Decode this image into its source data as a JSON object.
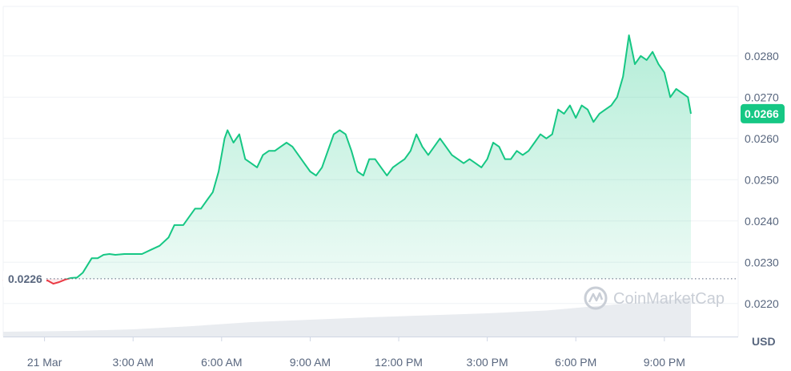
{
  "chart_data": {
    "type": "line",
    "title": "",
    "xlabel": "",
    "ylabel": "",
    "unit_label": "USD",
    "watermark": "CoinMarketCap",
    "reference_price": 0.0226,
    "reference_label": "0.0226",
    "current_price": 0.0266,
    "current_label": "0.0266",
    "ylim": [
      0.0212,
      0.0292
    ],
    "xlim": [
      -1.4,
      23.5
    ],
    "grid": true,
    "y_ticks": [
      {
        "value": 0.028,
        "label": "0.0280"
      },
      {
        "value": 0.027,
        "label": "0.0270"
      },
      {
        "value": 0.026,
        "label": "0.0260"
      },
      {
        "value": 0.025,
        "label": "0.0250"
      },
      {
        "value": 0.024,
        "label": "0.0240"
      },
      {
        "value": 0.023,
        "label": "0.0230"
      },
      {
        "value": 0.022,
        "label": "0.0220"
      }
    ],
    "x_ticks": [
      {
        "value": 0,
        "label": "21 Mar"
      },
      {
        "value": 3,
        "label": "3:00 AM"
      },
      {
        "value": 6,
        "label": "6:00 AM"
      },
      {
        "value": 9,
        "label": "9:00 AM"
      },
      {
        "value": 12,
        "label": "12:00 PM"
      },
      {
        "value": 15,
        "label": "3:00 PM"
      },
      {
        "value": 18,
        "label": "6:00 PM"
      },
      {
        "value": 21,
        "label": "9:00 PM"
      }
    ],
    "series": [
      {
        "x": [
          -1.4,
          -1.1,
          -0.8,
          -0.5,
          -0.3,
          -0.1,
          0.1,
          0.3,
          0.5,
          0.7,
          0.9,
          1.1,
          1.3,
          1.6,
          1.8,
          2.0,
          2.2,
          2.4,
          2.7,
          3.0,
          3.3,
          3.6,
          3.9,
          4.2,
          4.4,
          4.7,
          4.9,
          5.1,
          5.3,
          5.5,
          5.7,
          5.9,
          6.1,
          6.2,
          6.4,
          6.6,
          6.8,
          7.0,
          7.2,
          7.4,
          7.6,
          7.8,
          8.0,
          8.2,
          8.4,
          8.6,
          8.8,
          9.0,
          9.2,
          9.4,
          9.6,
          9.8,
          10.0,
          10.2,
          10.4,
          10.6,
          10.8,
          11.0,
          11.2,
          11.4,
          11.6,
          11.8,
          12.0,
          12.2,
          12.4,
          12.6,
          12.8,
          13.0,
          13.2,
          13.4,
          13.6,
          13.8,
          14.0,
          14.2,
          14.4,
          14.6,
          14.8,
          15.0,
          15.2,
          15.4,
          15.6,
          15.8,
          16.0,
          16.2,
          16.4,
          16.6,
          16.8,
          17.0,
          17.2,
          17.4,
          17.6,
          17.8,
          18.0,
          18.2,
          18.4,
          18.6,
          18.8,
          19.0,
          19.2,
          19.4,
          19.6,
          19.8,
          20.0,
          20.2,
          20.4,
          20.6,
          20.8,
          21.0,
          21.2,
          21.4,
          21.6,
          21.8,
          21.9
        ],
        "values": [
          0.02255,
          0.0226,
          0.02258,
          0.02262,
          0.02258,
          0.02253,
          0.02256,
          0.02248,
          0.02252,
          0.02258,
          0.02262,
          0.02263,
          0.02275,
          0.0231,
          0.0231,
          0.02318,
          0.0232,
          0.02318,
          0.0232,
          0.0232,
          0.0232,
          0.0233,
          0.0234,
          0.0236,
          0.0239,
          0.0239,
          0.0241,
          0.0243,
          0.0243,
          0.0245,
          0.0247,
          0.0252,
          0.026,
          0.0262,
          0.0259,
          0.0261,
          0.0255,
          0.0254,
          0.0253,
          0.0256,
          0.0257,
          0.0257,
          0.0258,
          0.0259,
          0.0258,
          0.0256,
          0.0254,
          0.0252,
          0.0251,
          0.0253,
          0.0257,
          0.0261,
          0.0262,
          0.0261,
          0.0257,
          0.0252,
          0.0251,
          0.0255,
          0.0255,
          0.0253,
          0.0251,
          0.0253,
          0.0254,
          0.0255,
          0.0257,
          0.0261,
          0.0258,
          0.0256,
          0.0258,
          0.026,
          0.0258,
          0.0256,
          0.0255,
          0.0254,
          0.0255,
          0.0254,
          0.0253,
          0.0255,
          0.0259,
          0.0258,
          0.0255,
          0.0255,
          0.0257,
          0.0256,
          0.0257,
          0.0259,
          0.0261,
          0.026,
          0.0261,
          0.0267,
          0.0266,
          0.0268,
          0.0265,
          0.0268,
          0.0267,
          0.0264,
          0.0266,
          0.0267,
          0.0268,
          0.027,
          0.0275,
          0.0285,
          0.0278,
          0.028,
          0.0279,
          0.0281,
          0.0278,
          0.0276,
          0.027,
          0.0272,
          0.0271,
          0.027,
          0.0266
        ]
      }
    ],
    "volume": {
      "x": [
        -1.4,
        1.0,
        3.0,
        5.0,
        7.0,
        9.0,
        11.0,
        13.0,
        15.0,
        17.0,
        19.0,
        21.0,
        21.9
      ],
      "values": [
        0.12,
        0.14,
        0.18,
        0.26,
        0.36,
        0.42,
        0.48,
        0.53,
        0.58,
        0.65,
        0.78,
        0.9,
        0.96
      ]
    },
    "colors": {
      "up_line": "#16c784",
      "down_line": "#ea3943",
      "grid": "#eff2f5",
      "axis_text": "#58667e",
      "badge_bg": "#16c784",
      "volume_fill": "#e9ecf0"
    }
  }
}
